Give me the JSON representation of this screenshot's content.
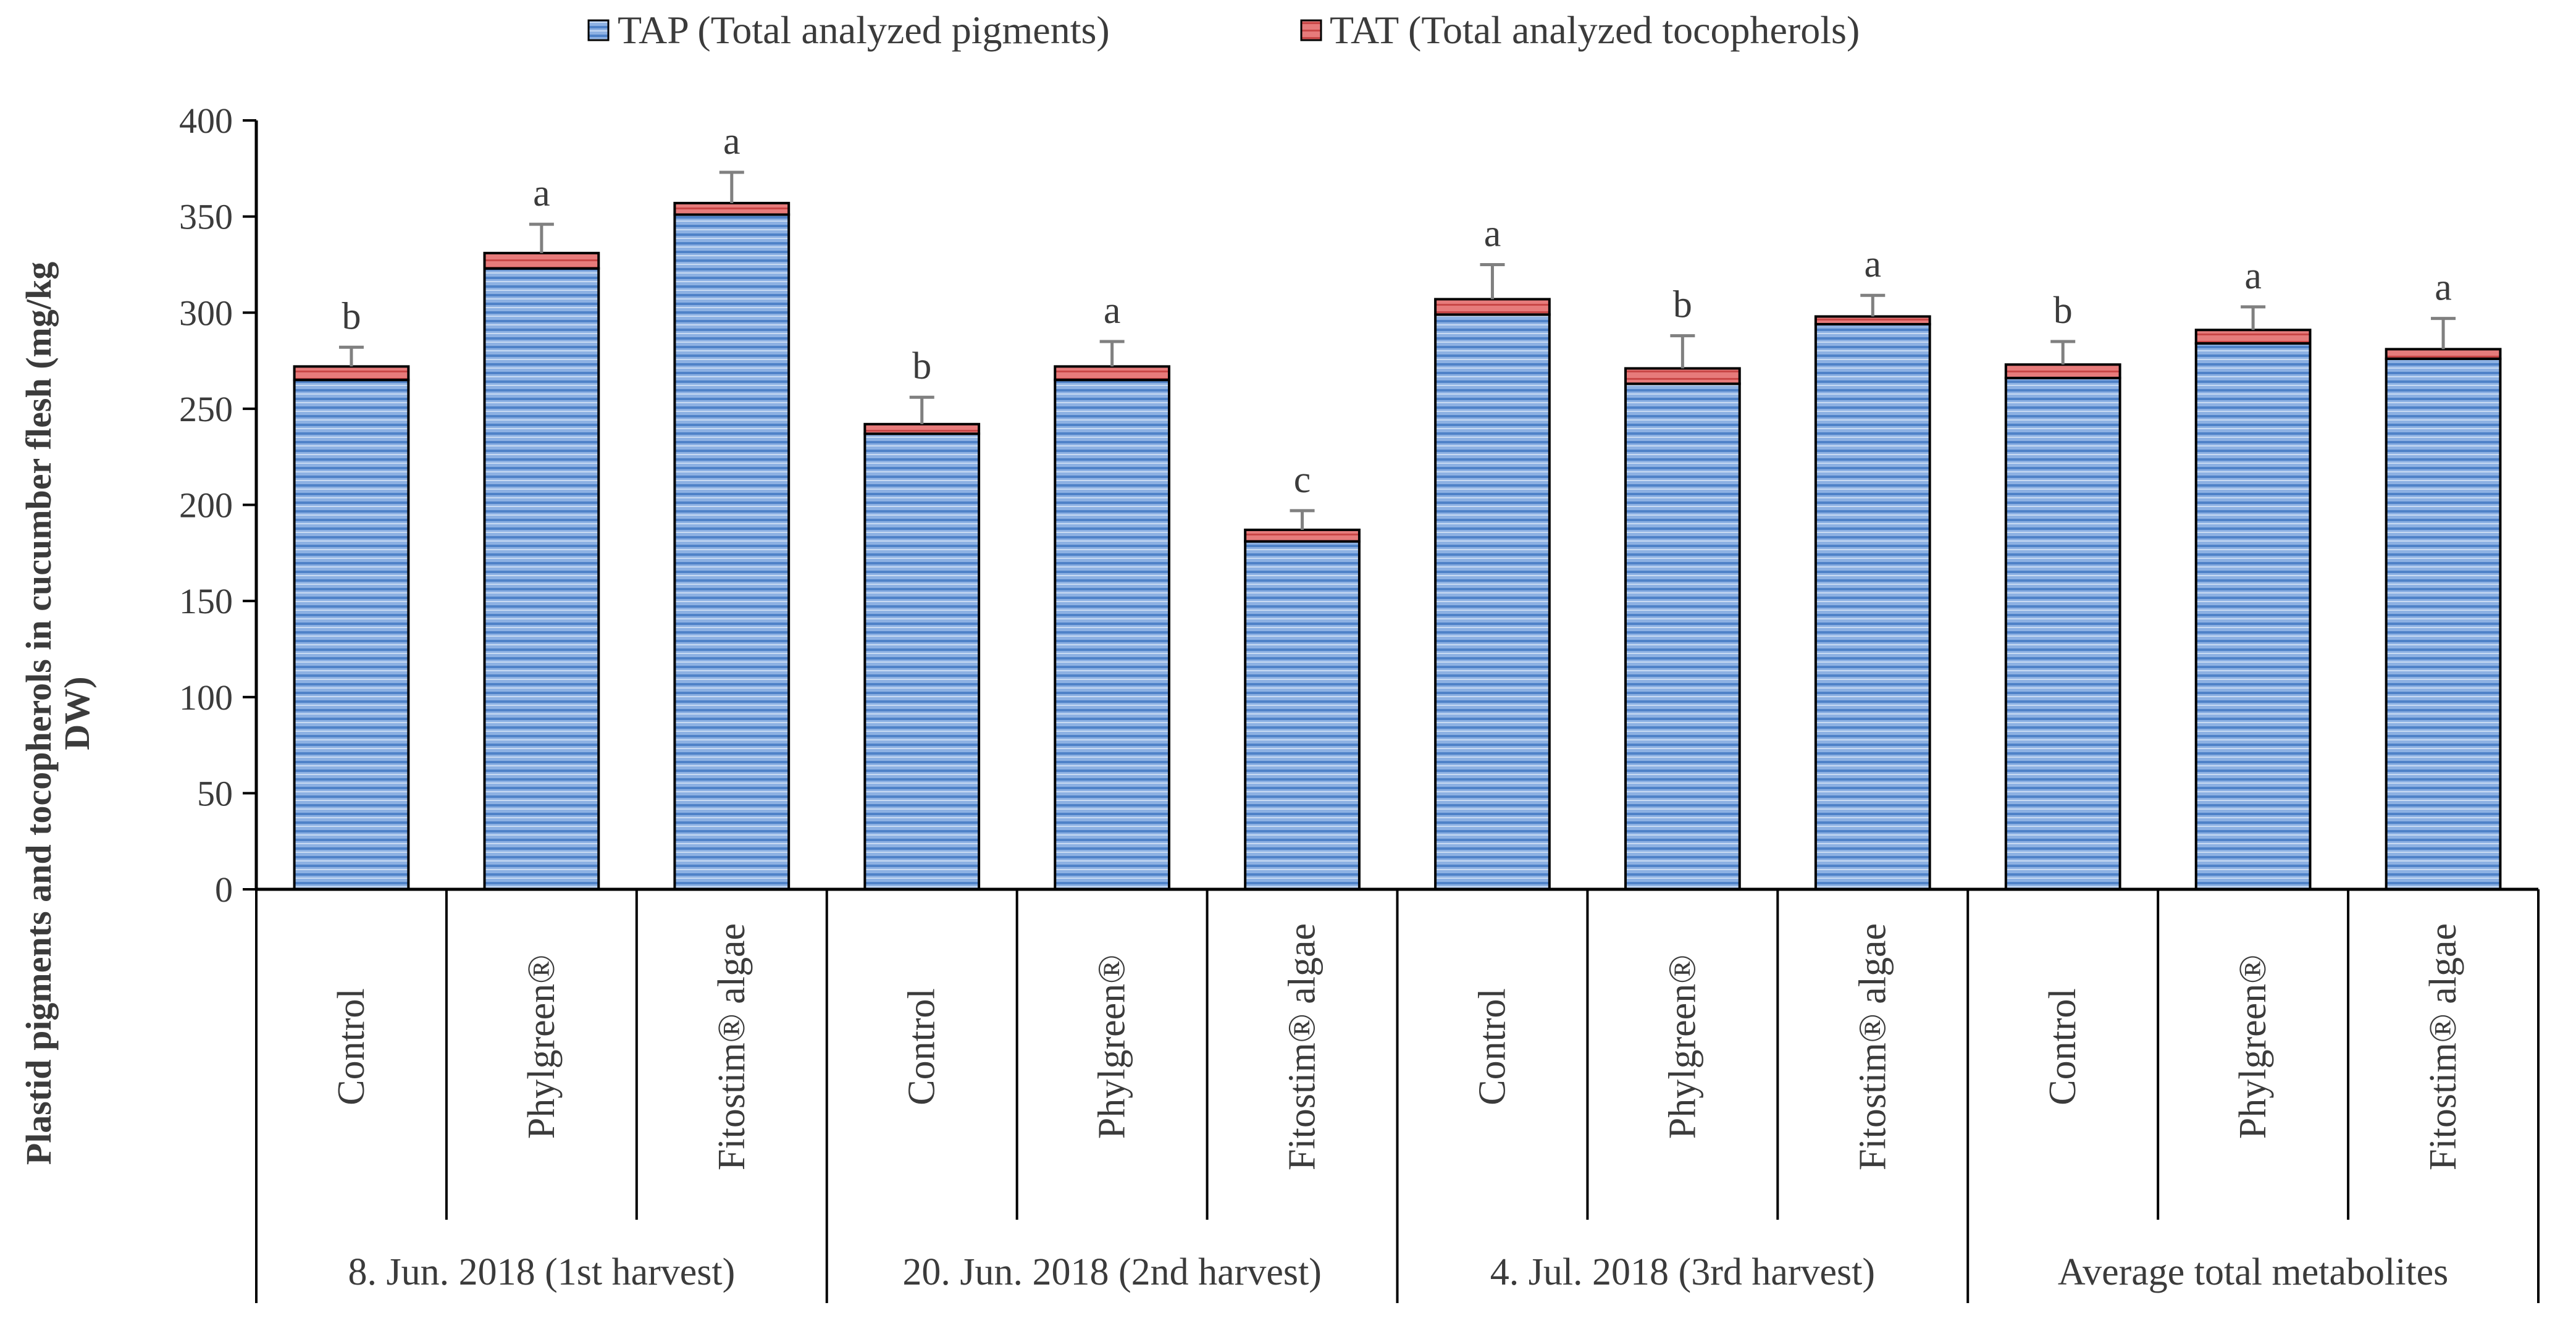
{
  "chart_data": {
    "type": "bar",
    "stacked": true,
    "title": "",
    "ylabel_line1": "Plastid pigments and tocopherols  in cucumber flesh (mg/kg",
    "ylabel_line2": "DW)",
    "ylim": [
      0,
      400
    ],
    "yticks": [
      "0",
      "50",
      "100",
      "150",
      "200",
      "250",
      "300",
      "350",
      "400"
    ],
    "legend": [
      {
        "name": "TAP (Total analyzed pigments)",
        "color": "#6f9bd6"
      },
      {
        "name": "TAT (Total analyzed tocopherols)",
        "color": "#e06666"
      }
    ],
    "groups": [
      {
        "label": "8. Jun. 2018 (1st harvest)",
        "size": 3
      },
      {
        "label": "20. Jun. 2018 (2nd harvest)",
        "size": 3
      },
      {
        "label": "4. Jul. 2018 (3rd harvest)",
        "size": 3
      },
      {
        "label": "Average total metabolites",
        "size": 3
      }
    ],
    "categories": [
      "Control",
      "Phylgreen®",
      "Fitostim® algae",
      "Control",
      "Phylgreen®",
      "Fitostim® algae",
      "Control",
      "Phylgreen®",
      "Fitostim® algae",
      "Control",
      "Phylgreen®",
      "Fitostim® algae"
    ],
    "series": [
      {
        "name": "TAP (Total analyzed pigments)",
        "values": [
          265,
          323,
          351,
          237,
          265,
          181,
          299,
          263,
          294,
          266,
          284,
          276
        ]
      },
      {
        "name": "TAT (Total analyzed tocopherols)",
        "values": [
          7,
          8,
          6,
          5,
          7,
          6,
          8,
          8,
          4,
          7,
          7,
          5
        ]
      }
    ],
    "errors": [
      10,
      15,
      16,
      14,
      13,
      10,
      18,
      17,
      11,
      12,
      12,
      16
    ],
    "significance_letters": [
      "b",
      "a",
      "a",
      "b",
      "a",
      "c",
      "a",
      "b",
      "a",
      "b",
      "a",
      "a"
    ]
  }
}
